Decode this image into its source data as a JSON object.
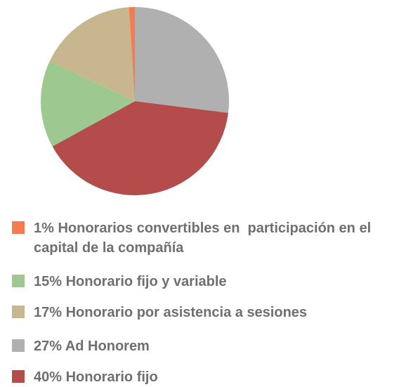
{
  "chart_data": {
    "type": "pie",
    "categories": [
      "27% Ad Honorem",
      "40% Honorario fijo",
      "15% Honorario fijo y variable",
      "17% Honorario por asistencia a sesiones",
      "1% Honorarios convertibles en  participación en el capital de la compañía"
    ],
    "values": [
      27,
      40,
      15,
      17,
      1
    ],
    "colors": [
      "#b1b0b1",
      "#b34c4b",
      "#9dc990",
      "#c8b78e",
      "#f47c50"
    ],
    "legend": "bottom"
  }
}
